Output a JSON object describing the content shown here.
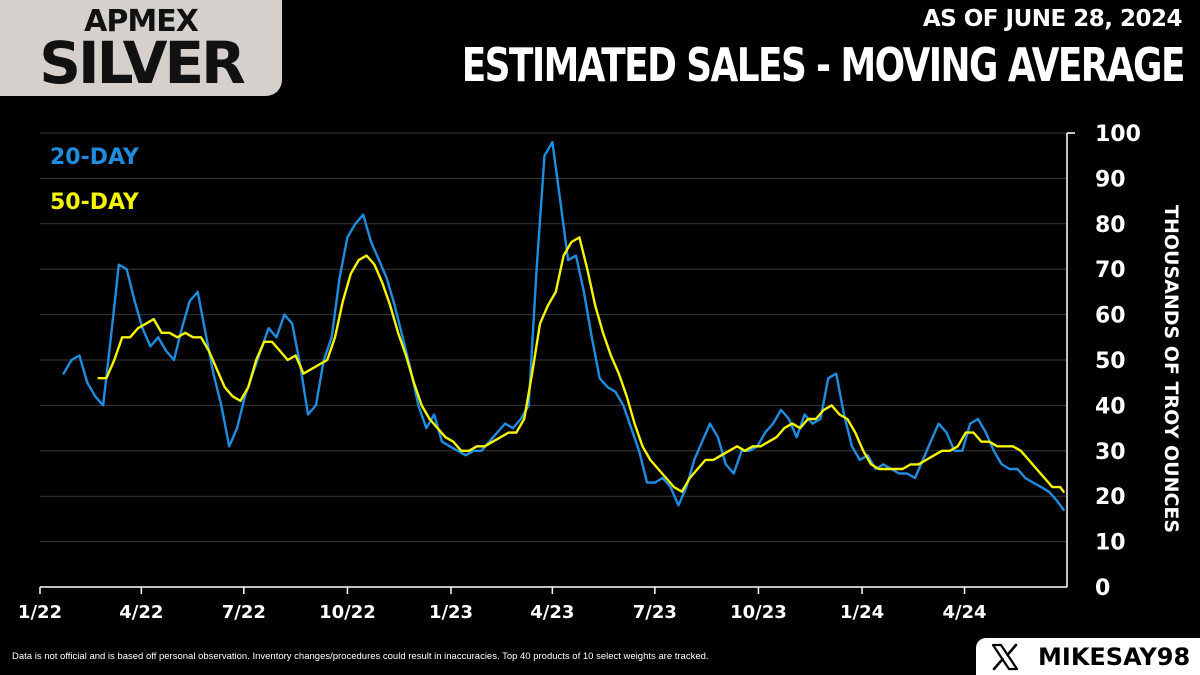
{
  "brand": {
    "top": "APMEX",
    "main": "SILVER"
  },
  "as_of": "AS OF JUNE 28, 2024",
  "footnote": "Data is not official and is based off personal observation. Inventory changes/procedures could result in inaccuracies. Top 40 products of 10 select weights are tracked.",
  "handle": "MIKESAY98",
  "colors": {
    "series_20": "#1e8de0",
    "series_50": "#f5f500",
    "grid": "#3a3a3a",
    "badge": "#d5d0cb"
  },
  "chart_data": {
    "type": "line",
    "title": "ESTIMATED SALES - MOVING AVERAGE",
    "ylabel": "THOUSANDS OF TROY OUNCES",
    "xlabel": "",
    "ylim": [
      0,
      100
    ],
    "yticks": [
      0,
      10,
      20,
      30,
      40,
      50,
      60,
      70,
      80,
      90,
      100
    ],
    "xlim": [
      "2022-01-01",
      "2024-07-01"
    ],
    "xticks": [
      {
        "date": "2022-01-01",
        "label": "1/22"
      },
      {
        "date": "2022-04-01",
        "label": "4/22"
      },
      {
        "date": "2022-07-01",
        "label": "7/22"
      },
      {
        "date": "2022-10-01",
        "label": "10/22"
      },
      {
        "date": "2023-01-01",
        "label": "1/23"
      },
      {
        "date": "2023-04-01",
        "label": "4/23"
      },
      {
        "date": "2023-07-01",
        "label": "7/23"
      },
      {
        "date": "2023-10-01",
        "label": "10/23"
      },
      {
        "date": "2024-01-01",
        "label": "1/24"
      },
      {
        "date": "2024-04-01",
        "label": "4/24"
      }
    ],
    "grid": true,
    "legend_position": "top-left",
    "series": [
      {
        "name": "20-DAY",
        "color": "#1e8de0",
        "points": [
          [
            "2022-01-22",
            47
          ],
          [
            "2022-01-29",
            50
          ],
          [
            "2022-02-05",
            51
          ],
          [
            "2022-02-12",
            45
          ],
          [
            "2022-02-19",
            42
          ],
          [
            "2022-02-26",
            40
          ],
          [
            "2022-03-05",
            55
          ],
          [
            "2022-03-12",
            71
          ],
          [
            "2022-03-19",
            70
          ],
          [
            "2022-03-26",
            63
          ],
          [
            "2022-04-02",
            57
          ],
          [
            "2022-04-09",
            53
          ],
          [
            "2022-04-16",
            55
          ],
          [
            "2022-04-23",
            52
          ],
          [
            "2022-04-30",
            50
          ],
          [
            "2022-05-07",
            57
          ],
          [
            "2022-05-14",
            63
          ],
          [
            "2022-05-21",
            65
          ],
          [
            "2022-05-28",
            56
          ],
          [
            "2022-06-04",
            47
          ],
          [
            "2022-06-11",
            40
          ],
          [
            "2022-06-18",
            31
          ],
          [
            "2022-06-25",
            35
          ],
          [
            "2022-07-02",
            42
          ],
          [
            "2022-07-09",
            47
          ],
          [
            "2022-07-16",
            52
          ],
          [
            "2022-07-23",
            57
          ],
          [
            "2022-07-30",
            55
          ],
          [
            "2022-08-06",
            60
          ],
          [
            "2022-08-13",
            58
          ],
          [
            "2022-08-20",
            49
          ],
          [
            "2022-08-27",
            38
          ],
          [
            "2022-09-03",
            40
          ],
          [
            "2022-09-10",
            50
          ],
          [
            "2022-09-17",
            55
          ],
          [
            "2022-09-24",
            68
          ],
          [
            "2022-10-01",
            77
          ],
          [
            "2022-10-08",
            80
          ],
          [
            "2022-10-15",
            82
          ],
          [
            "2022-10-22",
            76
          ],
          [
            "2022-10-29",
            72
          ],
          [
            "2022-11-05",
            68
          ],
          [
            "2022-11-12",
            62
          ],
          [
            "2022-11-19",
            55
          ],
          [
            "2022-11-26",
            48
          ],
          [
            "2022-12-03",
            40
          ],
          [
            "2022-12-10",
            35
          ],
          [
            "2022-12-17",
            38
          ],
          [
            "2022-12-24",
            32
          ],
          [
            "2022-12-31",
            31
          ],
          [
            "2023-01-07",
            30
          ],
          [
            "2023-01-14",
            29
          ],
          [
            "2023-01-21",
            30
          ],
          [
            "2023-01-28",
            30
          ],
          [
            "2023-02-04",
            32
          ],
          [
            "2023-02-11",
            34
          ],
          [
            "2023-02-18",
            36
          ],
          [
            "2023-02-25",
            35
          ],
          [
            "2023-03-04",
            37
          ],
          [
            "2023-03-11",
            40
          ],
          [
            "2023-03-18",
            70
          ],
          [
            "2023-03-25",
            95
          ],
          [
            "2023-04-01",
            98
          ],
          [
            "2023-04-08",
            85
          ],
          [
            "2023-04-15",
            72
          ],
          [
            "2023-04-22",
            73
          ],
          [
            "2023-04-29",
            65
          ],
          [
            "2023-05-06",
            55
          ],
          [
            "2023-05-13",
            46
          ],
          [
            "2023-05-20",
            44
          ],
          [
            "2023-05-27",
            43
          ],
          [
            "2023-06-03",
            40
          ],
          [
            "2023-06-10",
            35
          ],
          [
            "2023-06-17",
            30
          ],
          [
            "2023-06-24",
            23
          ],
          [
            "2023-07-01",
            23
          ],
          [
            "2023-07-08",
            24
          ],
          [
            "2023-07-15",
            22
          ],
          [
            "2023-07-22",
            18
          ],
          [
            "2023-07-29",
            22
          ],
          [
            "2023-08-05",
            28
          ],
          [
            "2023-08-12",
            32
          ],
          [
            "2023-08-19",
            36
          ],
          [
            "2023-08-26",
            33
          ],
          [
            "2023-09-02",
            27
          ],
          [
            "2023-09-09",
            25
          ],
          [
            "2023-09-16",
            30
          ],
          [
            "2023-09-23",
            30
          ],
          [
            "2023-09-30",
            31
          ],
          [
            "2023-10-07",
            34
          ],
          [
            "2023-10-14",
            36
          ],
          [
            "2023-10-21",
            39
          ],
          [
            "2023-10-28",
            37
          ],
          [
            "2023-11-04",
            33
          ],
          [
            "2023-11-11",
            38
          ],
          [
            "2023-11-18",
            36
          ],
          [
            "2023-11-25",
            37
          ],
          [
            "2023-12-02",
            46
          ],
          [
            "2023-12-09",
            47
          ],
          [
            "2023-12-16",
            38
          ],
          [
            "2023-12-23",
            31
          ],
          [
            "2023-12-30",
            28
          ],
          [
            "2024-01-06",
            29
          ],
          [
            "2024-01-13",
            26
          ],
          [
            "2024-01-20",
            27
          ],
          [
            "2024-01-27",
            26
          ],
          [
            "2024-02-03",
            25
          ],
          [
            "2024-02-10",
            25
          ],
          [
            "2024-02-17",
            24
          ],
          [
            "2024-02-24",
            28
          ],
          [
            "2024-03-02",
            32
          ],
          [
            "2024-03-09",
            36
          ],
          [
            "2024-03-16",
            34
          ],
          [
            "2024-03-23",
            30
          ],
          [
            "2024-03-30",
            30
          ],
          [
            "2024-04-06",
            36
          ],
          [
            "2024-04-13",
            37
          ],
          [
            "2024-04-20",
            34
          ],
          [
            "2024-04-27",
            30
          ],
          [
            "2024-05-04",
            27
          ],
          [
            "2024-05-11",
            26
          ],
          [
            "2024-05-18",
            26
          ],
          [
            "2024-05-25",
            24
          ],
          [
            "2024-06-01",
            23
          ],
          [
            "2024-06-08",
            22
          ],
          [
            "2024-06-15",
            21
          ],
          [
            "2024-06-22",
            19
          ],
          [
            "2024-06-28",
            17
          ]
        ]
      },
      {
        "name": "50-DAY",
        "color": "#f5f500",
        "points": [
          [
            "2022-02-22",
            46
          ],
          [
            "2022-03-01",
            46
          ],
          [
            "2022-03-08",
            50
          ],
          [
            "2022-03-15",
            55
          ],
          [
            "2022-03-22",
            55
          ],
          [
            "2022-03-29",
            57
          ],
          [
            "2022-04-05",
            58
          ],
          [
            "2022-04-12",
            59
          ],
          [
            "2022-04-19",
            56
          ],
          [
            "2022-04-26",
            56
          ],
          [
            "2022-05-03",
            55
          ],
          [
            "2022-05-10",
            56
          ],
          [
            "2022-05-17",
            55
          ],
          [
            "2022-05-24",
            55
          ],
          [
            "2022-05-31",
            52
          ],
          [
            "2022-06-07",
            48
          ],
          [
            "2022-06-14",
            44
          ],
          [
            "2022-06-21",
            42
          ],
          [
            "2022-06-28",
            41
          ],
          [
            "2022-07-05",
            44
          ],
          [
            "2022-07-12",
            50
          ],
          [
            "2022-07-19",
            54
          ],
          [
            "2022-07-26",
            54
          ],
          [
            "2022-08-02",
            52
          ],
          [
            "2022-08-09",
            50
          ],
          [
            "2022-08-16",
            51
          ],
          [
            "2022-08-23",
            47
          ],
          [
            "2022-08-30",
            48
          ],
          [
            "2022-09-06",
            49
          ],
          [
            "2022-09-13",
            50
          ],
          [
            "2022-09-20",
            55
          ],
          [
            "2022-09-27",
            63
          ],
          [
            "2022-10-04",
            69
          ],
          [
            "2022-10-11",
            72
          ],
          [
            "2022-10-18",
            73
          ],
          [
            "2022-10-25",
            71
          ],
          [
            "2022-11-01",
            67
          ],
          [
            "2022-11-08",
            62
          ],
          [
            "2022-11-15",
            56
          ],
          [
            "2022-11-22",
            51
          ],
          [
            "2022-11-29",
            45
          ],
          [
            "2022-12-06",
            40
          ],
          [
            "2022-12-13",
            37
          ],
          [
            "2022-12-20",
            35
          ],
          [
            "2022-12-27",
            33
          ],
          [
            "2023-01-03",
            32
          ],
          [
            "2023-01-10",
            30
          ],
          [
            "2023-01-17",
            30
          ],
          [
            "2023-01-24",
            31
          ],
          [
            "2023-01-31",
            31
          ],
          [
            "2023-02-07",
            32
          ],
          [
            "2023-02-14",
            33
          ],
          [
            "2023-02-21",
            34
          ],
          [
            "2023-02-28",
            34
          ],
          [
            "2023-03-07",
            37
          ],
          [
            "2023-03-14",
            47
          ],
          [
            "2023-03-21",
            58
          ],
          [
            "2023-03-28",
            62
          ],
          [
            "2023-04-04",
            65
          ],
          [
            "2023-04-11",
            73
          ],
          [
            "2023-04-18",
            76
          ],
          [
            "2023-04-25",
            77
          ],
          [
            "2023-05-02",
            70
          ],
          [
            "2023-05-09",
            62
          ],
          [
            "2023-05-16",
            56
          ],
          [
            "2023-05-23",
            51
          ],
          [
            "2023-05-30",
            47
          ],
          [
            "2023-06-06",
            42
          ],
          [
            "2023-06-13",
            36
          ],
          [
            "2023-06-20",
            31
          ],
          [
            "2023-06-27",
            28
          ],
          [
            "2023-07-04",
            26
          ],
          [
            "2023-07-11",
            24
          ],
          [
            "2023-07-18",
            22
          ],
          [
            "2023-07-25",
            21
          ],
          [
            "2023-08-01",
            24
          ],
          [
            "2023-08-08",
            26
          ],
          [
            "2023-08-15",
            28
          ],
          [
            "2023-08-22",
            28
          ],
          [
            "2023-08-29",
            29
          ],
          [
            "2023-09-05",
            30
          ],
          [
            "2023-09-12",
            31
          ],
          [
            "2023-09-19",
            30
          ],
          [
            "2023-09-26",
            31
          ],
          [
            "2023-10-03",
            31
          ],
          [
            "2023-10-10",
            32
          ],
          [
            "2023-10-17",
            33
          ],
          [
            "2023-10-24",
            35
          ],
          [
            "2023-10-31",
            36
          ],
          [
            "2023-11-07",
            35
          ],
          [
            "2023-11-14",
            37
          ],
          [
            "2023-11-21",
            37
          ],
          [
            "2023-11-28",
            39
          ],
          [
            "2023-12-05",
            40
          ],
          [
            "2023-12-12",
            38
          ],
          [
            "2023-12-19",
            37
          ],
          [
            "2023-12-26",
            34
          ],
          [
            "2024-01-02",
            30
          ],
          [
            "2024-01-09",
            27
          ],
          [
            "2024-01-16",
            26
          ],
          [
            "2024-01-23",
            26
          ],
          [
            "2024-01-30",
            26
          ],
          [
            "2024-02-06",
            26
          ],
          [
            "2024-02-13",
            27
          ],
          [
            "2024-02-20",
            27
          ],
          [
            "2024-02-27",
            28
          ],
          [
            "2024-03-05",
            29
          ],
          [
            "2024-03-12",
            30
          ],
          [
            "2024-03-19",
            30
          ],
          [
            "2024-03-26",
            31
          ],
          [
            "2024-04-02",
            34
          ],
          [
            "2024-04-09",
            34
          ],
          [
            "2024-04-16",
            32
          ],
          [
            "2024-04-23",
            32
          ],
          [
            "2024-04-30",
            31
          ],
          [
            "2024-05-07",
            31
          ],
          [
            "2024-05-14",
            31
          ],
          [
            "2024-05-21",
            30
          ],
          [
            "2024-05-28",
            28
          ],
          [
            "2024-06-04",
            26
          ],
          [
            "2024-06-11",
            24
          ],
          [
            "2024-06-18",
            22
          ],
          [
            "2024-06-25",
            22
          ],
          [
            "2024-06-28",
            21
          ]
        ]
      }
    ]
  }
}
